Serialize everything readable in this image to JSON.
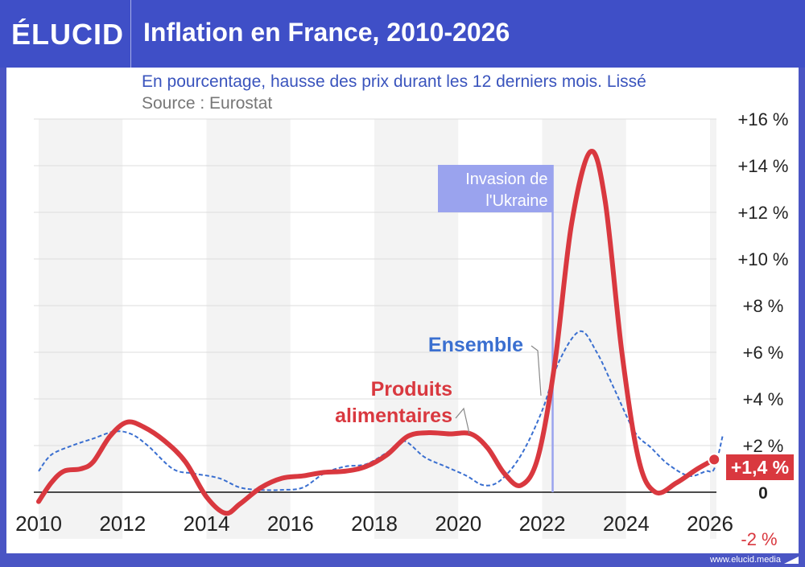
{
  "header": {
    "brand": "ÉLUCID",
    "title": "Inflation en France, 2010-2026"
  },
  "subtitle": "En pourcentage, hausse des prix durant les 12 derniers mois. Lissé",
  "source": "Source : Eurostat",
  "footer": "www.elucid.media",
  "colors": {
    "header_bg": "#3f4fc7",
    "food": "#d9383f",
    "overall": "#3a6fd0",
    "event": "#9aa3ee",
    "text_blue": "#3a54bd"
  },
  "chart_data": {
    "type": "line",
    "title": "Inflation en France, 2010-2026",
    "x_ticks": [
      "2010",
      "2012",
      "2014",
      "2016",
      "2018",
      "2020",
      "2022",
      "2024",
      "2026"
    ],
    "y_ticks": [
      {
        "v": 16,
        "label": "+16 %"
      },
      {
        "v": 14,
        "label": "+14 %"
      },
      {
        "v": 12,
        "label": "+12 %"
      },
      {
        "v": 10,
        "label": "+10 %"
      },
      {
        "v": 8,
        "label": "+8 %"
      },
      {
        "v": 6,
        "label": "+6 %"
      },
      {
        "v": 4,
        "label": "+4 %"
      },
      {
        "v": 2,
        "label": "+2 %"
      },
      {
        "v": 0,
        "label": "0"
      },
      {
        "v": -2,
        "label": "-2 %"
      }
    ],
    "xlim": [
      2010,
      2026.5
    ],
    "ylim": [
      -2,
      16
    ],
    "grid": true,
    "annotation": {
      "x": 2022.25,
      "label_line1": "Invasion de",
      "label_line2": "l'Ukraine"
    },
    "last_value_label": "+1,4 %",
    "series": [
      {
        "name": "Produits alimentaires",
        "label_line1": "Produits",
        "label_line2": "alimentaires",
        "points": [
          [
            2010,
            -0.4
          ],
          [
            2010.3,
            0.4
          ],
          [
            2010.6,
            0.9
          ],
          [
            2011,
            1.0
          ],
          [
            2011.3,
            1.3
          ],
          [
            2011.7,
            2.4
          ],
          [
            2012.1,
            3.0
          ],
          [
            2012.5,
            2.8
          ],
          [
            2013,
            2.2
          ],
          [
            2013.5,
            1.3
          ],
          [
            2014,
            -0.2
          ],
          [
            2014.45,
            -0.9
          ],
          [
            2014.8,
            -0.5
          ],
          [
            2015.3,
            0.2
          ],
          [
            2015.8,
            0.6
          ],
          [
            2016.3,
            0.7
          ],
          [
            2016.8,
            0.85
          ],
          [
            2017.3,
            0.9
          ],
          [
            2017.8,
            1.1
          ],
          [
            2018.3,
            1.6
          ],
          [
            2018.8,
            2.4
          ],
          [
            2019.3,
            2.55
          ],
          [
            2019.8,
            2.5
          ],
          [
            2020.3,
            2.5
          ],
          [
            2020.7,
            1.9
          ],
          [
            2021.1,
            0.8
          ],
          [
            2021.5,
            0.3
          ],
          [
            2021.9,
            1.5
          ],
          [
            2022.3,
            5.5
          ],
          [
            2022.7,
            11.5
          ],
          [
            2023.15,
            14.6
          ],
          [
            2023.5,
            12.5
          ],
          [
            2023.9,
            6.0
          ],
          [
            2024.3,
            1.4
          ],
          [
            2024.7,
            0.0
          ],
          [
            2025.2,
            0.4
          ],
          [
            2025.7,
            1.0
          ],
          [
            2026.1,
            1.4
          ]
        ]
      },
      {
        "name": "Ensemble",
        "points": [
          [
            2010,
            0.9
          ],
          [
            2010.3,
            1.6
          ],
          [
            2010.8,
            2.0
          ],
          [
            2011.3,
            2.3
          ],
          [
            2011.8,
            2.6
          ],
          [
            2012.2,
            2.5
          ],
          [
            2012.6,
            2.0
          ],
          [
            2013.2,
            1.0
          ],
          [
            2013.7,
            0.8
          ],
          [
            2014.3,
            0.6
          ],
          [
            2014.8,
            0.2
          ],
          [
            2015.3,
            0.1
          ],
          [
            2015.8,
            0.1
          ],
          [
            2016.3,
            0.2
          ],
          [
            2016.8,
            0.8
          ],
          [
            2017.3,
            1.1
          ],
          [
            2017.8,
            1.2
          ],
          [
            2018.3,
            1.7
          ],
          [
            2018.7,
            2.2
          ],
          [
            2019.2,
            1.5
          ],
          [
            2019.7,
            1.1
          ],
          [
            2020.2,
            0.7
          ],
          [
            2020.6,
            0.3
          ],
          [
            2021.0,
            0.5
          ],
          [
            2021.5,
            1.6
          ],
          [
            2022.0,
            3.5
          ],
          [
            2022.4,
            5.6
          ],
          [
            2022.9,
            6.9
          ],
          [
            2023.3,
            6.0
          ],
          [
            2023.7,
            4.5
          ],
          [
            2024.2,
            2.6
          ],
          [
            2024.6,
            1.9
          ],
          [
            2025.0,
            1.2
          ],
          [
            2025.5,
            0.7
          ],
          [
            2025.9,
            0.9
          ],
          [
            2026.1,
            1.0
          ],
          [
            2026.3,
            2.4
          ]
        ]
      }
    ]
  }
}
